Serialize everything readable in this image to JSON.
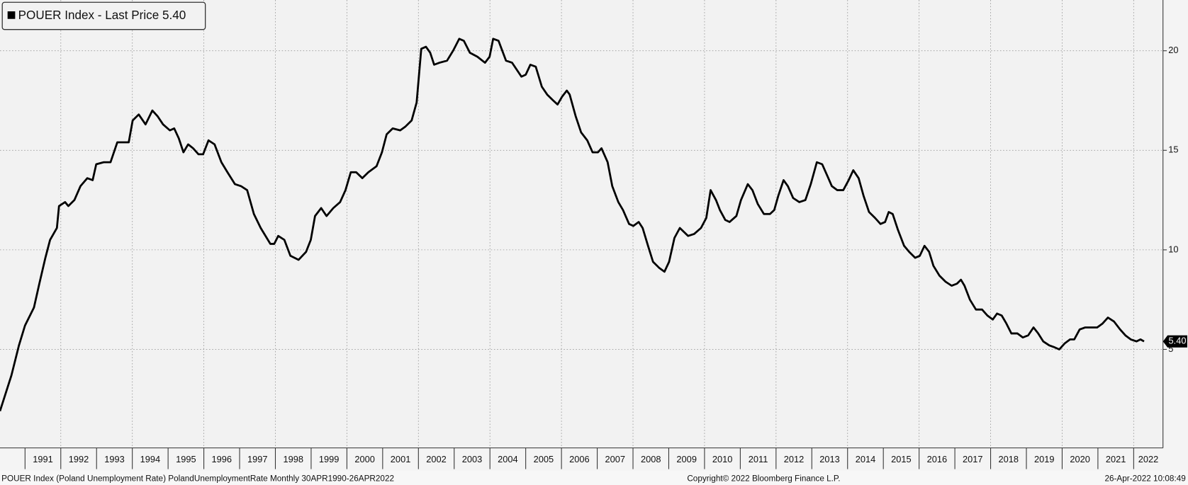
{
  "chart_data": {
    "type": "line",
    "footer_left": "POUER Index (Poland Unemployment Rate) PolandUnemploymentRate  Monthly 30APR1990-26APR2022",
    "footer_center": "Copyright© 2022 Bloomberg Finance L.P.",
    "footer_right": "26-Apr-2022 10:08:49",
    "x": [
      1990.3,
      1990.62,
      1990.83,
      1991.0,
      1991.25,
      1991.4,
      1991.57,
      1991.7,
      1991.89,
      1991.95,
      1992.12,
      1992.21,
      1992.38,
      1992.55,
      1992.74,
      1992.89,
      1992.99,
      1993.2,
      1993.39,
      1993.58,
      1993.75,
      1993.9,
      1994.01,
      1994.18,
      1994.37,
      1994.56,
      1994.71,
      1994.86,
      1995.05,
      1995.17,
      1995.3,
      1995.43,
      1995.56,
      1995.7,
      1995.85,
      1995.98,
      1996.13,
      1996.3,
      1996.49,
      1996.66,
      1996.87,
      1997.04,
      1997.21,
      1997.4,
      1997.59,
      1997.86,
      1997.97,
      1998.08,
      1998.25,
      1998.42,
      1998.65,
      1998.86,
      1998.99,
      1999.11,
      1999.28,
      1999.43,
      1999.62,
      1999.81,
      1999.96,
      2000.11,
      2000.26,
      2000.43,
      2000.6,
      2000.83,
      2000.98,
      2001.11,
      2001.28,
      2001.49,
      2001.64,
      2001.81,
      2001.95,
      2002.08,
      2002.21,
      2002.33,
      2002.44,
      2002.59,
      2002.8,
      2002.97,
      2003.14,
      2003.27,
      2003.44,
      2003.65,
      2003.86,
      2003.99,
      2004.09,
      2004.24,
      2004.45,
      2004.62,
      2004.88,
      2005.0,
      2005.13,
      2005.28,
      2005.45,
      2005.6,
      2005.77,
      2005.89,
      2006.02,
      2006.15,
      2006.23,
      2006.4,
      2006.55,
      2006.72,
      2006.87,
      2007.02,
      2007.12,
      2007.29,
      2007.42,
      2007.59,
      2007.72,
      2007.89,
      2008.01,
      2008.16,
      2008.27,
      2008.42,
      2008.56,
      2008.73,
      2008.88,
      2009.01,
      2009.16,
      2009.31,
      2009.54,
      2009.71,
      2009.9,
      2010.05,
      2010.17,
      2010.32,
      2010.43,
      2010.58,
      2010.7,
      2010.89,
      2011.02,
      2011.21,
      2011.34,
      2011.49,
      2011.66,
      2011.83,
      2011.95,
      2012.06,
      2012.21,
      2012.33,
      2012.48,
      2012.65,
      2012.82,
      2012.97,
      2013.14,
      2013.29,
      2013.44,
      2013.56,
      2013.71,
      2013.88,
      2014.03,
      2014.16,
      2014.31,
      2014.45,
      2014.6,
      2014.77,
      2014.92,
      2015.05,
      2015.15,
      2015.26,
      2015.41,
      2015.58,
      2015.72,
      2015.89,
      2016.02,
      2016.15,
      2016.28,
      2016.4,
      2016.57,
      2016.74,
      2016.91,
      2017.06,
      2017.17,
      2017.27,
      2017.42,
      2017.59,
      2017.76,
      2017.91,
      2018.06,
      2018.18,
      2018.31,
      2018.44,
      2018.58,
      2018.75,
      2018.9,
      2019.05,
      2019.2,
      2019.33,
      2019.47,
      2019.64,
      2019.79,
      2019.92,
      2020.07,
      2020.22,
      2020.34,
      2020.49,
      2020.64,
      2020.98,
      2021.13,
      2021.28,
      2021.45,
      2021.62,
      2021.77,
      2021.92,
      2022.08,
      2022.19,
      2022.29
    ],
    "series": [
      {
        "name": "POUER Index - Last Price 5.40",
        "color": "#000000",
        "last_label": "5.40",
        "values": [
          1.9,
          3.7,
          5.2,
          6.2,
          7.1,
          8.3,
          9.6,
          10.5,
          11.1,
          12.2,
          12.4,
          12.2,
          12.5,
          13.2,
          13.6,
          13.5,
          14.3,
          14.4,
          14.4,
          15.4,
          15.4,
          15.4,
          16.5,
          16.8,
          16.3,
          17.0,
          16.7,
          16.3,
          16.0,
          16.1,
          15.6,
          14.9,
          15.3,
          15.1,
          14.8,
          14.8,
          15.5,
          15.3,
          14.4,
          13.9,
          13.3,
          13.2,
          13.0,
          11.8,
          11.1,
          10.3,
          10.3,
          10.7,
          10.5,
          9.7,
          9.5,
          9.9,
          10.5,
          11.7,
          12.1,
          11.7,
          12.1,
          12.4,
          13.0,
          13.9,
          13.9,
          13.6,
          13.9,
          14.2,
          14.9,
          15.8,
          16.1,
          16.0,
          16.2,
          16.5,
          17.4,
          20.1,
          20.2,
          19.9,
          19.3,
          19.4,
          19.5,
          20.0,
          20.6,
          20.5,
          19.9,
          19.7,
          19.4,
          19.7,
          20.6,
          20.5,
          19.5,
          19.4,
          18.7,
          18.8,
          19.3,
          19.2,
          18.2,
          17.8,
          17.5,
          17.3,
          17.7,
          18.0,
          17.8,
          16.7,
          15.9,
          15.5,
          14.9,
          14.9,
          15.1,
          14.4,
          13.2,
          12.4,
          12.0,
          11.3,
          11.2,
          11.4,
          11.1,
          10.2,
          9.4,
          9.1,
          8.9,
          9.4,
          10.6,
          11.1,
          10.7,
          10.8,
          11.1,
          11.6,
          13.0,
          12.5,
          12.0,
          11.5,
          11.4,
          11.7,
          12.5,
          13.3,
          13.0,
          12.3,
          11.8,
          11.8,
          12.0,
          12.7,
          13.5,
          13.2,
          12.6,
          12.4,
          12.5,
          13.3,
          14.4,
          14.3,
          13.7,
          13.2,
          13.0,
          13.0,
          13.5,
          14.0,
          13.6,
          12.7,
          11.9,
          11.6,
          11.3,
          11.4,
          11.9,
          11.8,
          11.0,
          10.2,
          9.9,
          9.6,
          9.7,
          10.2,
          9.9,
          9.2,
          8.7,
          8.4,
          8.2,
          8.3,
          8.5,
          8.2,
          7.5,
          7.0,
          7.0,
          6.7,
          6.5,
          6.8,
          6.7,
          6.3,
          5.8,
          5.8,
          5.6,
          5.7,
          6.1,
          5.8,
          5.4,
          5.2,
          5.1,
          5.0,
          5.3,
          5.5,
          5.5,
          6.0,
          6.1,
          6.1,
          6.3,
          6.6,
          6.4,
          6.0,
          5.7,
          5.5,
          5.4,
          5.5,
          5.4
        ]
      }
    ],
    "xlim": [
      1990.3,
      2022.82
    ],
    "xticks": [
      1991,
      1992,
      1993,
      1994,
      1995,
      1996,
      1997,
      1998,
      1999,
      2000,
      2001,
      2002,
      2003,
      2004,
      2005,
      2006,
      2007,
      2008,
      2009,
      2010,
      2011,
      2012,
      2013,
      2014,
      2015,
      2016,
      2017,
      2018,
      2019,
      2020,
      2021,
      2022
    ],
    "ylim": [
      0.05,
      22.55
    ],
    "yticks": [
      5,
      10,
      15,
      20
    ],
    "grid": true
  }
}
